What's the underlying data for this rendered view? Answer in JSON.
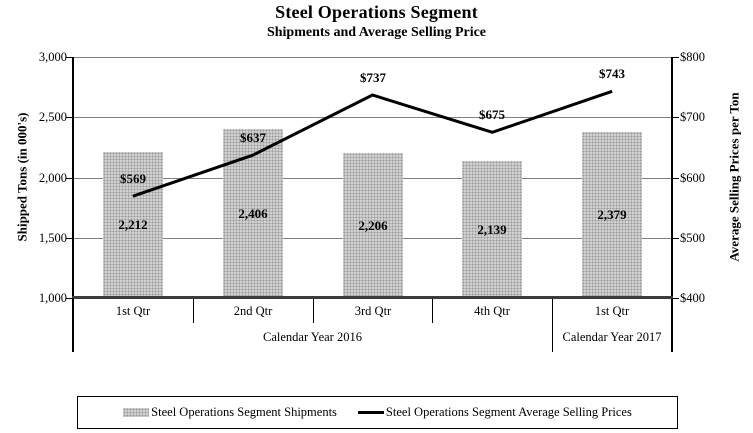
{
  "chart_data": {
    "type": "bar+line",
    "title": "Steel Operations Segment",
    "subtitle": "Shipments and Average Selling Price",
    "categories": [
      "1st Qtr",
      "2nd Qtr",
      "3rd Qtr",
      "4th Qtr",
      "1st Qtr"
    ],
    "category_groups": [
      {
        "label": "Calendar Year 2016",
        "span": 4
      },
      {
        "label": "Calendar Year 2017",
        "span": 1
      }
    ],
    "series": [
      {
        "name": "Steel Operations Segment Shipments",
        "type": "bar",
        "axis": "left",
        "values": [
          2212,
          2406,
          2206,
          2139,
          2379
        ],
        "labels": [
          "2,212",
          "2,406",
          "2,206",
          "2,139",
          "2,379"
        ],
        "color": "#c9c9c9"
      },
      {
        "name": "Steel Operations Segment Average Selling Prices",
        "type": "line",
        "axis": "right",
        "values": [
          569,
          637,
          737,
          675,
          743
        ],
        "labels": [
          "$569",
          "$637",
          "$737",
          "$675",
          "$743"
        ],
        "color": "#000000"
      }
    ],
    "left_axis": {
      "title": "Shipped Tons (in 000's)",
      "min": 1000,
      "max": 3000,
      "step": 500,
      "tick_labels": [
        "3,000",
        "2,500",
        "2,000",
        "1,500",
        "1,000"
      ]
    },
    "right_axis": {
      "title": "Average Selling Prices per Ton",
      "min": 400,
      "max": 800,
      "step": 100,
      "tick_labels": [
        "$800",
        "$700",
        "$600",
        "$500",
        "$400"
      ]
    },
    "grid": true,
    "legend_position": "bottom",
    "colors": {
      "bar": "#c9c9c9",
      "line": "#000000",
      "gridline": "#808080"
    }
  }
}
